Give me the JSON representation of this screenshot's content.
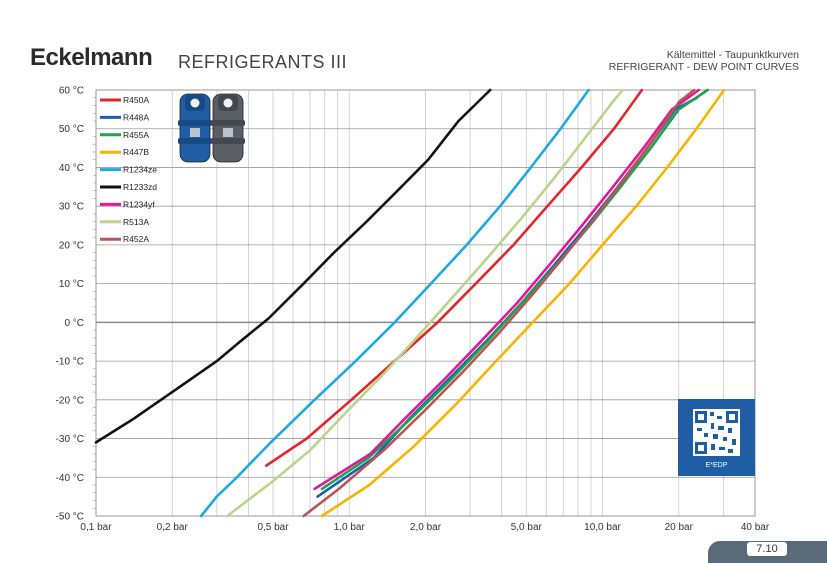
{
  "header": {
    "brand": "Eckelmann",
    "title": "REFRIGERANTS III",
    "subtitle_line1": "Kältemittel - Taupunktkurven",
    "subtitle_line2": "REFRIGERANT - DEW POINT CURVES"
  },
  "footer": {
    "page_number": "7.10"
  },
  "qr": {
    "label": "E*EDP"
  },
  "chart_data": {
    "type": "line",
    "title": "",
    "xlabel": "",
    "ylabel": "",
    "x_scale": "log",
    "xlim": [
      0.1,
      40
    ],
    "ylim": [
      -50,
      60
    ],
    "grid": true,
    "legend_position": "top-left",
    "x_ticks": [
      {
        "value": 0.1,
        "label": "0,1 bar"
      },
      {
        "value": 0.2,
        "label": "0,2 bar"
      },
      {
        "value": 0.5,
        "label": "0,5 bar"
      },
      {
        "value": 1.0,
        "label": "1,0 bar"
      },
      {
        "value": 2.0,
        "label": "2,0 bar"
      },
      {
        "value": 5.0,
        "label": "5,0 bar"
      },
      {
        "value": 10.0,
        "label": "10,0 bar"
      },
      {
        "value": 20.0,
        "label": "20 bar"
      },
      {
        "value": 40.0,
        "label": "40 bar"
      }
    ],
    "y_ticks": [
      {
        "value": 60,
        "label": "60 °C"
      },
      {
        "value": 50,
        "label": "50 °C"
      },
      {
        "value": 40,
        "label": "40 °C"
      },
      {
        "value": 30,
        "label": "30 °C"
      },
      {
        "value": 20,
        "label": "20 °C"
      },
      {
        "value": 10,
        "label": "10 °C"
      },
      {
        "value": 0,
        "label": "0 °C"
      },
      {
        "value": -10,
        "label": "-10 °C"
      },
      {
        "value": -20,
        "label": "-20 °C"
      },
      {
        "value": -30,
        "label": "-30 °C"
      },
      {
        "value": -40,
        "label": "-40 °C"
      },
      {
        "value": -50,
        "label": "-50 °C"
      }
    ],
    "series": [
      {
        "name": "R450A",
        "color": "#e3262b",
        "points": [
          [
            0.47,
            -37
          ],
          [
            0.68,
            -30
          ],
          [
            1.02,
            -20
          ],
          [
            1.51,
            -10
          ],
          [
            2.23,
            0
          ],
          [
            3.16,
            10
          ],
          [
            4.45,
            20
          ],
          [
            6.06,
            30
          ],
          [
            8.26,
            40
          ],
          [
            11.1,
            50
          ],
          [
            14.3,
            60
          ]
        ]
      },
      {
        "name": "R448A",
        "color": "#1a5fae",
        "points": [
          [
            0.75,
            -45
          ],
          [
            1.25,
            -35
          ],
          [
            1.72,
            -25
          ],
          [
            2.44,
            -15
          ],
          [
            3.46,
            -5
          ],
          [
            4.79,
            5
          ],
          [
            6.48,
            15
          ],
          [
            8.7,
            25
          ],
          [
            11.5,
            35
          ],
          [
            15.0,
            45
          ],
          [
            19.4,
            55
          ],
          [
            23.6,
            58
          ]
        ]
      },
      {
        "name": "R455A",
        "color": "#1ea24a",
        "points": [
          [
            0.78,
            -43
          ],
          [
            1.19,
            -35
          ],
          [
            1.74,
            -25
          ],
          [
            2.5,
            -15
          ],
          [
            3.5,
            -5
          ],
          [
            4.8,
            5
          ],
          [
            6.6,
            15
          ],
          [
            8.9,
            25
          ],
          [
            11.8,
            35
          ],
          [
            15.5,
            45
          ],
          [
            20.0,
            55
          ],
          [
            26.0,
            60
          ]
        ]
      },
      {
        "name": "R447B",
        "color": "#f7b500",
        "points": [
          [
            0.78,
            -50
          ],
          [
            1.2,
            -42
          ],
          [
            1.8,
            -32
          ],
          [
            2.65,
            -21
          ],
          [
            3.8,
            -10
          ],
          [
            5.3,
            0
          ],
          [
            7.4,
            10
          ],
          [
            10.0,
            20
          ],
          [
            13.6,
            30
          ],
          [
            18.0,
            40
          ],
          [
            23.5,
            50
          ],
          [
            30.2,
            60
          ]
        ]
      },
      {
        "name": "R1234ze",
        "color": "#1fa9e1",
        "points": [
          [
            0.26,
            -50
          ],
          [
            0.3,
            -45
          ],
          [
            0.36,
            -40
          ],
          [
            0.49,
            -31
          ],
          [
            0.73,
            -20
          ],
          [
            1.06,
            -10
          ],
          [
            1.51,
            0
          ],
          [
            2.1,
            10
          ],
          [
            2.91,
            20
          ],
          [
            3.94,
            30
          ],
          [
            5.21,
            40
          ],
          [
            6.83,
            50
          ],
          [
            8.81,
            60
          ]
        ]
      },
      {
        "name": "R1233zd",
        "color": "#111111",
        "points": [
          [
            0.1,
            -31
          ],
          [
            0.14,
            -25
          ],
          [
            0.2,
            -18
          ],
          [
            0.3,
            -10
          ],
          [
            0.37,
            -5
          ],
          [
            0.48,
            1
          ],
          [
            0.66,
            10
          ],
          [
            0.87,
            18
          ],
          [
            1.17,
            26
          ],
          [
            1.55,
            34
          ],
          [
            2.05,
            42
          ],
          [
            2.7,
            52
          ],
          [
            3.6,
            60
          ]
        ]
      },
      {
        "name": "R1234yf",
        "color": "#e2189b",
        "points": [
          [
            0.73,
            -43
          ],
          [
            1.21,
            -34
          ],
          [
            1.65,
            -25
          ],
          [
            2.35,
            -15
          ],
          [
            3.3,
            -5
          ],
          [
            4.6,
            5
          ],
          [
            6.2,
            15
          ],
          [
            8.3,
            25
          ],
          [
            11.0,
            35
          ],
          [
            14.5,
            45
          ],
          [
            18.8,
            55
          ],
          [
            24.0,
            60
          ]
        ]
      },
      {
        "name": "R513A",
        "color": "#b8d68b",
        "points": [
          [
            0.33,
            -50
          ],
          [
            0.5,
            -41
          ],
          [
            0.7,
            -33
          ],
          [
            0.98,
            -23
          ],
          [
            1.38,
            -13
          ],
          [
            1.9,
            -3
          ],
          [
            2.6,
            7
          ],
          [
            3.55,
            17
          ],
          [
            4.8,
            27
          ],
          [
            6.4,
            37
          ],
          [
            8.4,
            47
          ],
          [
            11.0,
            57
          ],
          [
            12.0,
            60
          ]
        ]
      },
      {
        "name": "R452A",
        "color": "#b7555a",
        "points": [
          [
            0.66,
            -50
          ],
          [
            0.91,
            -43
          ],
          [
            1.37,
            -33
          ],
          [
            1.97,
            -23
          ],
          [
            2.79,
            -13
          ],
          [
            3.87,
            -3
          ],
          [
            5.26,
            7
          ],
          [
            7.05,
            17
          ],
          [
            9.32,
            27
          ],
          [
            12.2,
            37
          ],
          [
            15.8,
            47
          ],
          [
            20.1,
            57
          ],
          [
            23.0,
            60
          ]
        ]
      }
    ]
  }
}
